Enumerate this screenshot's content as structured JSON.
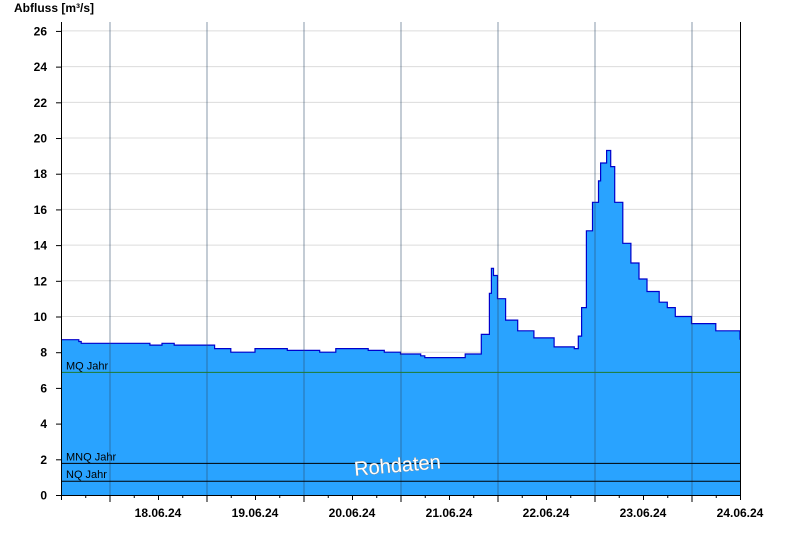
{
  "chart_data": {
    "type": "area",
    "ylabel": "Abfluss [m³/s]",
    "watermark": "Rohdaten",
    "ylim": [
      0,
      26.5
    ],
    "yticks": [
      0,
      2,
      4,
      6,
      8,
      10,
      12,
      14,
      16,
      18,
      20,
      22,
      24,
      26
    ],
    "x_start": "17.06.24 12:00",
    "x_end": "24.06.24 12:00",
    "day_ticks": [
      "18.06.24",
      "19.06.24",
      "20.06.24",
      "21.06.24",
      "22.06.24",
      "23.06.24",
      "24.06.24"
    ],
    "grid": true,
    "colors": {
      "fill": "#29a3ff",
      "line": "#0000cc",
      "mq": "#1f7a2e",
      "ref": "#000000",
      "grid": "#dcdcdc"
    },
    "reference_lines": [
      {
        "label": "MQ Jahr",
        "value": 6.9
      },
      {
        "label": "MNQ Jahr",
        "value": 1.8
      },
      {
        "label": "NQ Jahr",
        "value": 0.8
      }
    ],
    "series": [
      {
        "x_hours": [
          0,
          4,
          4.4,
          5,
          20,
          22,
          24,
          25,
          27,
          28,
          38,
          39,
          42,
          44,
          46,
          48,
          50,
          56,
          64,
          68,
          76,
          80,
          82,
          84,
          89,
          90,
          96,
          100,
          104,
          106,
          106.5,
          107,
          108,
          110,
          113,
          117,
          122,
          127,
          128,
          128.8,
          130,
          131.5,
          133,
          133.5,
          135,
          136,
          137,
          139,
          141,
          143,
          145,
          148,
          150,
          152,
          156,
          162,
          168
        ],
        "values": [
          8.7,
          8.7,
          8.6,
          8.5,
          8.5,
          8.4,
          8.4,
          8.5,
          8.5,
          8.4,
          8.2,
          8.2,
          8.0,
          8.0,
          8.0,
          8.2,
          8.2,
          8.1,
          8.0,
          8.2,
          8.1,
          8.0,
          8.0,
          7.9,
          7.8,
          7.7,
          7.7,
          7.9,
          9.0,
          11.3,
          12.7,
          12.3,
          11.0,
          9.8,
          9.2,
          8.8,
          8.3,
          8.2,
          8.9,
          10.5,
          14.8,
          16.4,
          17.6,
          18.6,
          19.3,
          18.4,
          16.4,
          14.1,
          13.0,
          12.1,
          11.4,
          10.8,
          10.5,
          10.0,
          9.6,
          9.2,
          8.7
        ]
      }
    ]
  }
}
